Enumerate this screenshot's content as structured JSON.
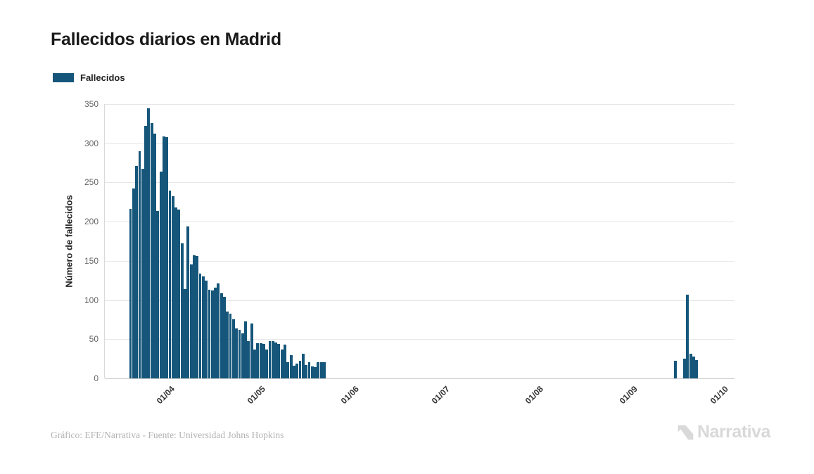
{
  "header": {
    "title": "Fallecidos diarios en Madrid"
  },
  "legend": {
    "label": "Fallecidos",
    "swatch_color": "#15567a"
  },
  "footer": {
    "credit": "Gráfico: EFE/Narrativa - Fuente: Universidad Johns Hopkins"
  },
  "branding": {
    "logo_text": "Narrativa",
    "logo_color": "#d9d9d9"
  },
  "colors": {
    "bar": "#15567a",
    "grid": "#e6e6e6",
    "axis": "#cccccc",
    "y_tick_label": "#666666",
    "x_tick_label": "#333333",
    "title": "#1a1a1a",
    "footer_text": "#b3b3b3"
  },
  "chart_data": {
    "type": "bar",
    "title": "Fallecidos diarios en Madrid",
    "series_name": "Fallecidos",
    "xlabel": "",
    "ylabel": "Número de fallecidos",
    "ylim": [
      0,
      350
    ],
    "yticks": [
      0,
      50,
      100,
      150,
      200,
      250,
      300,
      350
    ],
    "xticks": [
      "01/04",
      "01/05",
      "01/06",
      "01/07",
      "01/08",
      "01/09",
      "01/10"
    ],
    "x_start": "11/03",
    "x_end": "04/10",
    "grid": true,
    "legend_position": "top-left",
    "note": "Daily values; days not listed in points have value 0",
    "points": [
      [
        "19/03",
        216
      ],
      [
        "20/03",
        242
      ],
      [
        "21/03",
        271
      ],
      [
        "22/03",
        290
      ],
      [
        "23/03",
        267
      ],
      [
        "24/03",
        322
      ],
      [
        "25/03",
        345
      ],
      [
        "26/03",
        326
      ],
      [
        "27/03",
        312
      ],
      [
        "28/03",
        214
      ],
      [
        "29/03",
        264
      ],
      [
        "30/03",
        309
      ],
      [
        "31/03",
        308
      ],
      [
        "01/04",
        240
      ],
      [
        "02/04",
        232
      ],
      [
        "03/04",
        218
      ],
      [
        "04/04",
        215
      ],
      [
        "05/04",
        172
      ],
      [
        "06/04",
        114
      ],
      [
        "07/04",
        194
      ],
      [
        "08/04",
        145
      ],
      [
        "09/04",
        157
      ],
      [
        "10/04",
        156
      ],
      [
        "11/04",
        134
      ],
      [
        "12/04",
        130
      ],
      [
        "13/04",
        125
      ],
      [
        "14/04",
        113
      ],
      [
        "15/04",
        112
      ],
      [
        "16/04",
        116
      ],
      [
        "17/04",
        121
      ],
      [
        "18/04",
        109
      ],
      [
        "19/04",
        104
      ],
      [
        "20/04",
        85
      ],
      [
        "21/04",
        83
      ],
      [
        "22/04",
        75
      ],
      [
        "23/04",
        64
      ],
      [
        "24/04",
        62
      ],
      [
        "25/04",
        57
      ],
      [
        "26/04",
        73
      ],
      [
        "27/04",
        48
      ],
      [
        "28/04",
        70
      ],
      [
        "29/04",
        37
      ],
      [
        "30/04",
        45
      ],
      [
        "01/05",
        45
      ],
      [
        "02/05",
        44
      ],
      [
        "03/05",
        37
      ],
      [
        "04/05",
        48
      ],
      [
        "05/05",
        48
      ],
      [
        "06/05",
        46
      ],
      [
        "07/05",
        44
      ],
      [
        "08/05",
        37
      ],
      [
        "09/05",
        43
      ],
      [
        "10/05",
        21
      ],
      [
        "11/05",
        30
      ],
      [
        "12/05",
        16
      ],
      [
        "13/05",
        19
      ],
      [
        "14/05",
        22
      ],
      [
        "15/05",
        31
      ],
      [
        "16/05",
        17
      ],
      [
        "17/05",
        21
      ],
      [
        "18/05",
        15
      ],
      [
        "19/05",
        14
      ],
      [
        "20/05",
        21
      ],
      [
        "21/05",
        21
      ],
      [
        "22/05",
        21
      ],
      [
        "15/09",
        22
      ],
      [
        "18/09",
        25
      ],
      [
        "19/09",
        107
      ],
      [
        "20/09",
        31
      ],
      [
        "21/09",
        28
      ],
      [
        "22/09",
        23
      ]
    ]
  }
}
